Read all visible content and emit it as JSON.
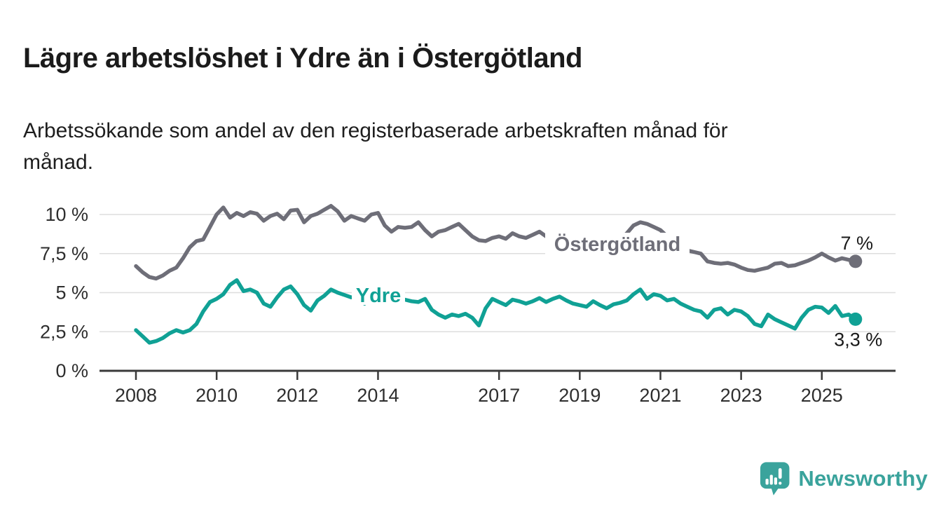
{
  "title": "Lägre arbetslöshet i Ydre än i Östergötland",
  "subtitle": "Arbetssökande som andel av den registerbaserade arbetskraften månad för månad.",
  "branding": {
    "name": "Newsworthy",
    "color": "#3aa39c"
  },
  "chart_data": {
    "type": "line",
    "unit": "%",
    "grid": "horizontal",
    "legend": "inline-labels",
    "x_start_year": 2008,
    "points_per_year": 6,
    "xlim": [
      2007.1,
      2026.8
    ],
    "ylim": [
      0,
      10.9
    ],
    "y_ticks": [
      {
        "value": 10,
        "label": "10 %"
      },
      {
        "value": 7.5,
        "label": "7,5 %"
      },
      {
        "value": 5,
        "label": "5 %"
      },
      {
        "value": 2.5,
        "label": "2,5 %"
      },
      {
        "value": 0,
        "label": "0 %"
      }
    ],
    "x_ticks": [
      {
        "year": 2008,
        "label": "2008"
      },
      {
        "year": 2010,
        "label": "2010"
      },
      {
        "year": 2012,
        "label": "2012"
      },
      {
        "year": 2014,
        "label": "2014"
      },
      {
        "year": 2017,
        "label": "2017"
      },
      {
        "year": 2019,
        "label": "2019"
      },
      {
        "year": 2021,
        "label": "2021"
      },
      {
        "year": 2023,
        "label": "2023"
      },
      {
        "year": 2025,
        "label": "2025"
      }
    ],
    "series": [
      {
        "name": "Östergötland",
        "color": "#6e6e78",
        "end_label": "7 %",
        "values": [
          6.7,
          6.3,
          6.0,
          5.9,
          6.1,
          6.4,
          6.6,
          7.2,
          7.9,
          8.3,
          8.4,
          9.2,
          10.0,
          10.45,
          9.8,
          10.1,
          9.9,
          10.15,
          10.05,
          9.6,
          9.9,
          10.05,
          9.7,
          10.25,
          10.3,
          9.5,
          9.9,
          10.05,
          10.3,
          10.55,
          10.2,
          9.6,
          9.9,
          9.75,
          9.6,
          10.0,
          10.1,
          9.3,
          8.9,
          9.2,
          9.15,
          9.2,
          9.5,
          9.0,
          8.6,
          8.9,
          9.0,
          9.2,
          9.4,
          9.0,
          8.6,
          8.35,
          8.3,
          8.5,
          8.6,
          8.45,
          8.8,
          8.6,
          8.5,
          8.7,
          8.9,
          8.6,
          8.3,
          8.1,
          8.4,
          8.6,
          8.5,
          8.2,
          8.0,
          8.1,
          8.2,
          8.3,
          8.4,
          8.8,
          9.3,
          9.5,
          9.4,
          9.2,
          9.0,
          8.6,
          8.2,
          7.9,
          7.7,
          7.6,
          7.5,
          7.0,
          6.9,
          6.85,
          6.9,
          6.8,
          6.6,
          6.45,
          6.4,
          6.5,
          6.6,
          6.85,
          6.9,
          6.7,
          6.75,
          6.9,
          7.05,
          7.25,
          7.5,
          7.25,
          7.05,
          7.2,
          7.1,
          7.0
        ]
      },
      {
        "name": "Ydre",
        "color": "#10a195",
        "end_label": "3,3 %",
        "values": [
          2.6,
          2.2,
          1.8,
          1.9,
          2.1,
          2.4,
          2.6,
          2.45,
          2.6,
          3.0,
          3.8,
          4.4,
          4.6,
          4.9,
          5.5,
          5.8,
          5.1,
          5.2,
          5.0,
          4.3,
          4.1,
          4.7,
          5.2,
          5.4,
          4.9,
          4.2,
          3.85,
          4.5,
          4.8,
          5.2,
          5.0,
          4.85,
          4.7,
          4.75,
          4.3,
          4.6,
          4.7,
          4.6,
          4.5,
          4.5,
          4.55,
          4.45,
          4.4,
          4.6,
          3.9,
          3.6,
          3.4,
          3.6,
          3.5,
          3.65,
          3.4,
          2.9,
          4.0,
          4.6,
          4.4,
          4.2,
          4.55,
          4.45,
          4.3,
          4.45,
          4.65,
          4.4,
          4.6,
          4.75,
          4.5,
          4.3,
          4.2,
          4.1,
          4.45,
          4.2,
          4.0,
          4.25,
          4.35,
          4.5,
          4.9,
          5.2,
          4.6,
          4.9,
          4.8,
          4.5,
          4.6,
          4.3,
          4.1,
          3.9,
          3.8,
          3.4,
          3.9,
          4.0,
          3.6,
          3.9,
          3.8,
          3.5,
          3.0,
          2.85,
          3.6,
          3.3,
          3.1,
          2.9,
          2.7,
          3.4,
          3.9,
          4.1,
          4.05,
          3.7,
          4.15,
          3.5,
          3.6,
          3.3
        ]
      }
    ]
  }
}
